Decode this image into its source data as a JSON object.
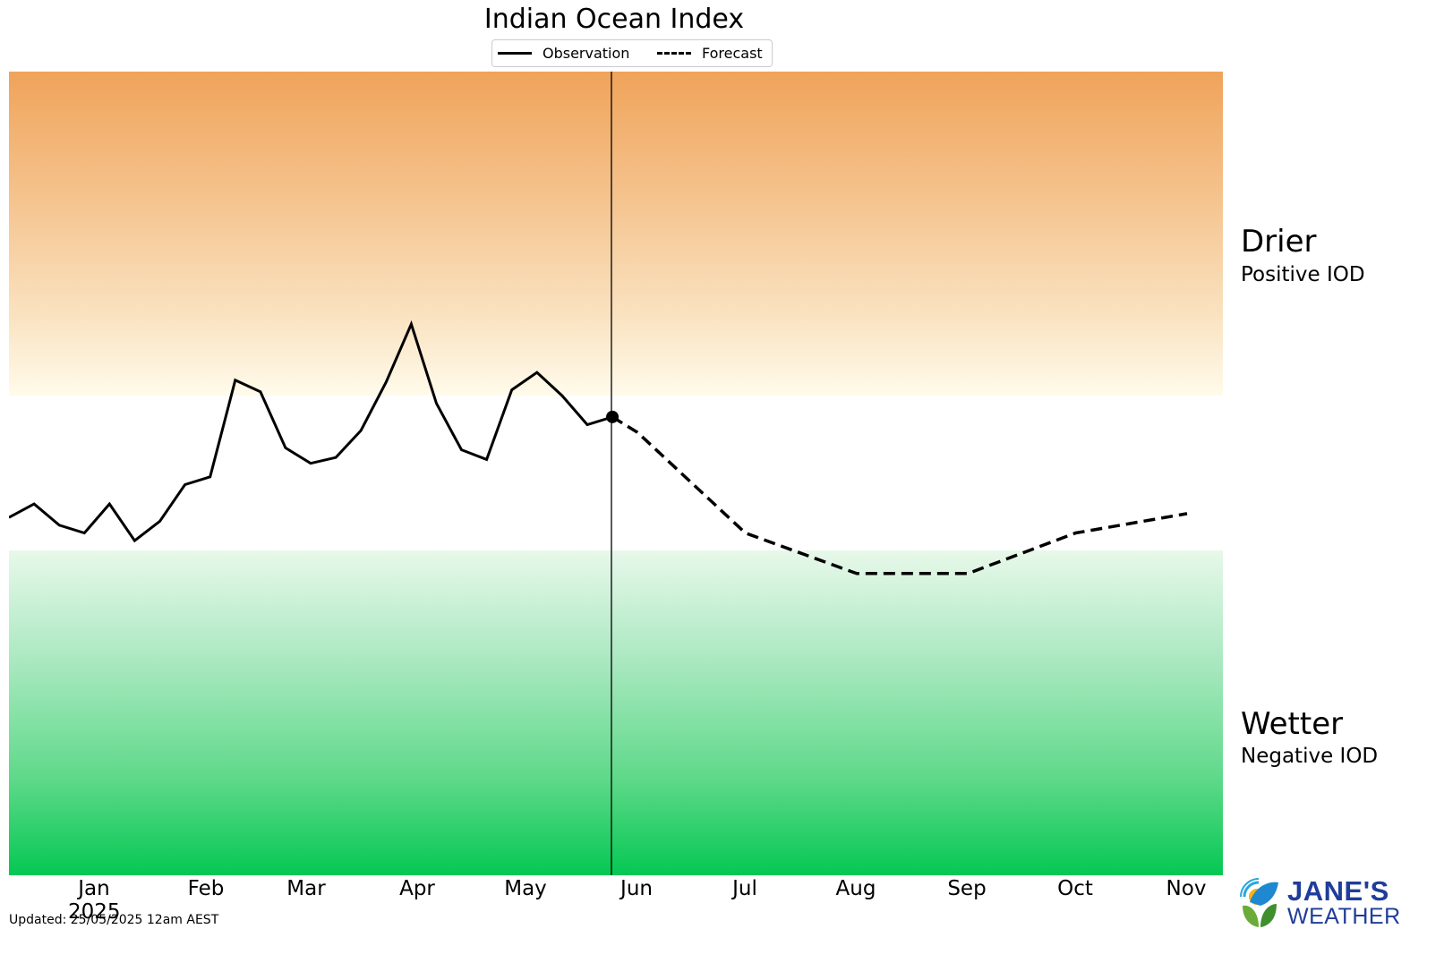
{
  "header": {
    "title": "Indian Ocean Index"
  },
  "legend": {
    "items": [
      {
        "label": "Observation",
        "style": "solid"
      },
      {
        "label": "Forecast",
        "style": "dashed"
      }
    ]
  },
  "side_labels": {
    "positive_big": "Drier",
    "positive_small": "Positive IOD",
    "negative_big": "Wetter",
    "negative_small": "Negative IOD"
  },
  "x_axis": {
    "ticks": [
      "Jan",
      "Feb",
      "Mar",
      "Apr",
      "May",
      "Jun",
      "Jul",
      "Aug",
      "Sep",
      "Oct",
      "Nov"
    ],
    "year_label": "2025"
  },
  "footer": {
    "updated": "Updated: 25/05/2025 12am AEST"
  },
  "logo": {
    "line1": "JANE'S",
    "line2": "WEATHER"
  },
  "colors": {
    "positive_band_top": "#f0a35a",
    "positive_band_bottom": "#fffbeb",
    "negative_band_top": "#e8f8ea",
    "negative_band_bottom": "#05c853",
    "line": "#000000",
    "logo_blue": "#1f3d99"
  },
  "chart_data": {
    "type": "line",
    "title": "Indian Ocean Index",
    "xlabel": "",
    "ylabel": "",
    "x_tick_labels": [
      "Jan\n2025",
      "Feb",
      "Mar",
      "Apr",
      "May",
      "Jun",
      "Jul",
      "Aug",
      "Sep",
      "Oct",
      "Nov"
    ],
    "grid": false,
    "legend_position": "top-center",
    "y_axis_visible": false,
    "ylim_estimate": [
      -2.08,
      2.08
    ],
    "threshold_bands": [
      {
        "name": "Positive IOD (Drier)",
        "from": 0.4,
        "to": 2.08,
        "color_gradient": [
          "#fffbeb",
          "#f0a35a"
        ]
      },
      {
        "name": "Neutral",
        "from": -0.4,
        "to": 0.4,
        "color": "#ffffff"
      },
      {
        "name": "Negative IOD (Wetter)",
        "from": -2.08,
        "to": -0.4,
        "color_gradient": [
          "#e8f8ea",
          "#05c853"
        ]
      }
    ],
    "current_marker": {
      "date": "2025-05-25",
      "value": 0.29
    },
    "series": [
      {
        "name": "Observation",
        "style": "solid",
        "x": [
          "2024-12-08",
          "2024-12-15",
          "2024-12-22",
          "2024-12-29",
          "2025-01-05",
          "2025-01-12",
          "2025-01-19",
          "2025-01-26",
          "2025-02-02",
          "2025-02-09",
          "2025-02-16",
          "2025-02-23",
          "2025-03-02",
          "2025-03-09",
          "2025-03-16",
          "2025-03-23",
          "2025-03-30",
          "2025-04-06",
          "2025-04-13",
          "2025-04-20",
          "2025-04-27",
          "2025-05-04",
          "2025-05-11",
          "2025-05-18",
          "2025-05-25"
        ],
        "values": [
          -0.23,
          -0.16,
          -0.27,
          -0.31,
          -0.16,
          -0.35,
          -0.25,
          -0.06,
          -0.02,
          0.48,
          0.42,
          0.13,
          0.05,
          0.08,
          0.22,
          0.47,
          0.77,
          0.36,
          0.12,
          0.07,
          0.43,
          0.52,
          0.4,
          0.25,
          0.29
        ]
      },
      {
        "name": "Forecast",
        "style": "dashed",
        "x": [
          "2025-05-25",
          "2025-06-01",
          "2025-07-01",
          "2025-08-01",
          "2025-09-01",
          "2025-10-01",
          "2025-11-01"
        ],
        "values": [
          0.29,
          0.21,
          -0.31,
          -0.52,
          -0.52,
          -0.31,
          -0.21
        ]
      }
    ]
  }
}
